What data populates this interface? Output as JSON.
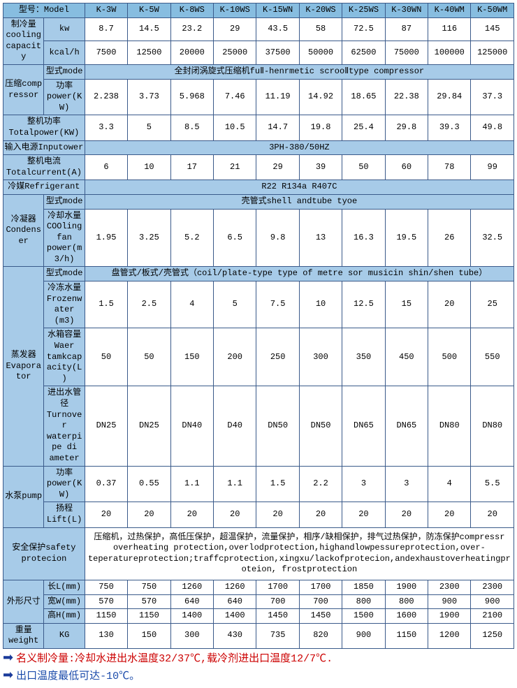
{
  "colors": {
    "header_bg": "#87bde0",
    "label_bg": "#a7cbe8",
    "border": "#3a5a8a",
    "note_red": "#cc0000",
    "note_blue": "#1a4aaa",
    "arrow": "#1a3a9a"
  },
  "models_header": "型号：Model",
  "models": [
    "K-3W",
    "K-5W",
    "K-8WS",
    "K-10WS",
    "K-15WN",
    "K-20WS",
    "K-25WS",
    "K-30WN",
    "K-40WM",
    "K-50WM"
  ],
  "cooling": {
    "label": "制冷量cooling capacity",
    "rows": [
      {
        "unit": "kw",
        "vals": [
          "8.7",
          "14.5",
          "23.2",
          "29",
          "43.5",
          "58",
          "72.5",
          "87",
          "116",
          "145"
        ]
      },
      {
        "unit": "kcal/h",
        "vals": [
          "7500",
          "12500",
          "20000",
          "25000",
          "37500",
          "50000",
          "62500",
          "75000",
          "100000",
          "125000"
        ]
      }
    ]
  },
  "compressor": {
    "label": "压缩comp ressor",
    "mode_label": "型式mode",
    "mode_value": "全封闭涡旋式压缩机fuⅡ-henrmetic scrooⅡtype compressor",
    "power_label": "功率power(KW)",
    "power_vals": [
      "2.238",
      "3.73",
      "5.968",
      "7.46",
      "11.19",
      "14.92",
      "18.65",
      "22.38",
      "29.84",
      "37.3"
    ]
  },
  "total_power": {
    "label": "整机功率Totalpower(KW)",
    "vals": [
      "3.3",
      "5",
      "8.5",
      "10.5",
      "14.7",
      "19.8",
      "25.4",
      "29.8",
      "39.3",
      "49.8"
    ]
  },
  "input_power": {
    "label": "输入电源Inputower",
    "value": "3PH-380/50HZ"
  },
  "total_current": {
    "label": "整机电流Totalcurrent(A)",
    "vals": [
      "6",
      "10",
      "17",
      "21",
      "29",
      "39",
      "50",
      "60",
      "78",
      "99"
    ]
  },
  "refrigerant": {
    "label": "冷媒Refrigerant",
    "value": "R22 R134a R407C"
  },
  "condenser": {
    "label": "冷凝器Condenser",
    "mode_label": "型式mode",
    "mode_value": "壳管式shell andtube tyoe",
    "cool_label": "冷却水量COOling fan power(m3/h)",
    "cool_vals": [
      "1.95",
      "3.25",
      "5.2",
      "6.5",
      "9.8",
      "13",
      "16.3",
      "19.5",
      "26",
      "32.5"
    ]
  },
  "evaporator": {
    "label": "蒸发器Evaporator",
    "mode_label": "型式mode",
    "mode_value": "盘管式/板式/壳管式（coil/plate-type type of metre sor musicin shin/shen tube）",
    "rows": [
      {
        "label": "冷冻水量Frozenwater (m3)",
        "vals": [
          "1.5",
          "2.5",
          "4",
          "5",
          "7.5",
          "10",
          "12.5",
          "15",
          "20",
          "25"
        ]
      },
      {
        "label": "水箱容量Waer tamkcapacity(L)",
        "vals": [
          "50",
          "50",
          "150",
          "200",
          "250",
          "300",
          "350",
          "450",
          "500",
          "550"
        ]
      },
      {
        "label": "进出水管径Turnover waterpipe di ameter",
        "vals": [
          "DN25",
          "DN25",
          "DN40",
          "D40",
          "DN50",
          "DN50",
          "DN65",
          "DN65",
          "DN80",
          "DN80"
        ]
      }
    ]
  },
  "pump": {
    "label": "水泵pump",
    "rows": [
      {
        "label": "功率power(KW)",
        "vals": [
          "0.37",
          "0.55",
          "1.1",
          "1.1",
          "1.5",
          "2.2",
          "3",
          "3",
          "4",
          "5.5"
        ]
      },
      {
        "label": "扬程Lift(L)",
        "vals": [
          "20",
          "20",
          "20",
          "20",
          "20",
          "20",
          "20",
          "20",
          "20",
          "20"
        ]
      }
    ]
  },
  "safety": {
    "label": "安全保护safety protecion",
    "value": "压缩机，过热保护，高低压保护，超温保护，流量保护，相序/缺相保护，排气过热保护，防冻保护compressr overheating protection,overlodprotection,highandlowpessureprotection,over-teperatureprotection;traffcprotection,xingxu/lackofprotecion,andexhaustoverheatingproteion,     frostprotection"
  },
  "dimensions": {
    "label": "外形尺寸",
    "rows": [
      {
        "label": "长L(mm)",
        "vals": [
          "750",
          "750",
          "1260",
          "1260",
          "1700",
          "1700",
          "1850",
          "1900",
          "2300",
          "2300"
        ]
      },
      {
        "label": "宽W(mm)",
        "vals": [
          "570",
          "570",
          "640",
          "640",
          "700",
          "700",
          "800",
          "800",
          "900",
          "900"
        ]
      },
      {
        "label": "高H(mm)",
        "vals": [
          "1150",
          "1150",
          "1400",
          "1400",
          "1450",
          "1450",
          "1500",
          "1600",
          "1900",
          "2100"
        ]
      }
    ]
  },
  "weight": {
    "label": "重量weight",
    "unit": "KG",
    "vals": [
      "130",
      "150",
      "300",
      "430",
      "735",
      "820",
      "900",
      "1150",
      "1200",
      "1250"
    ]
  },
  "notes": {
    "line1": "名义制冷量:冷却水进出水温度32/37℃,载冷剂进出口温度12/7℃.",
    "line2": "出口温度最低可达-10℃。"
  }
}
